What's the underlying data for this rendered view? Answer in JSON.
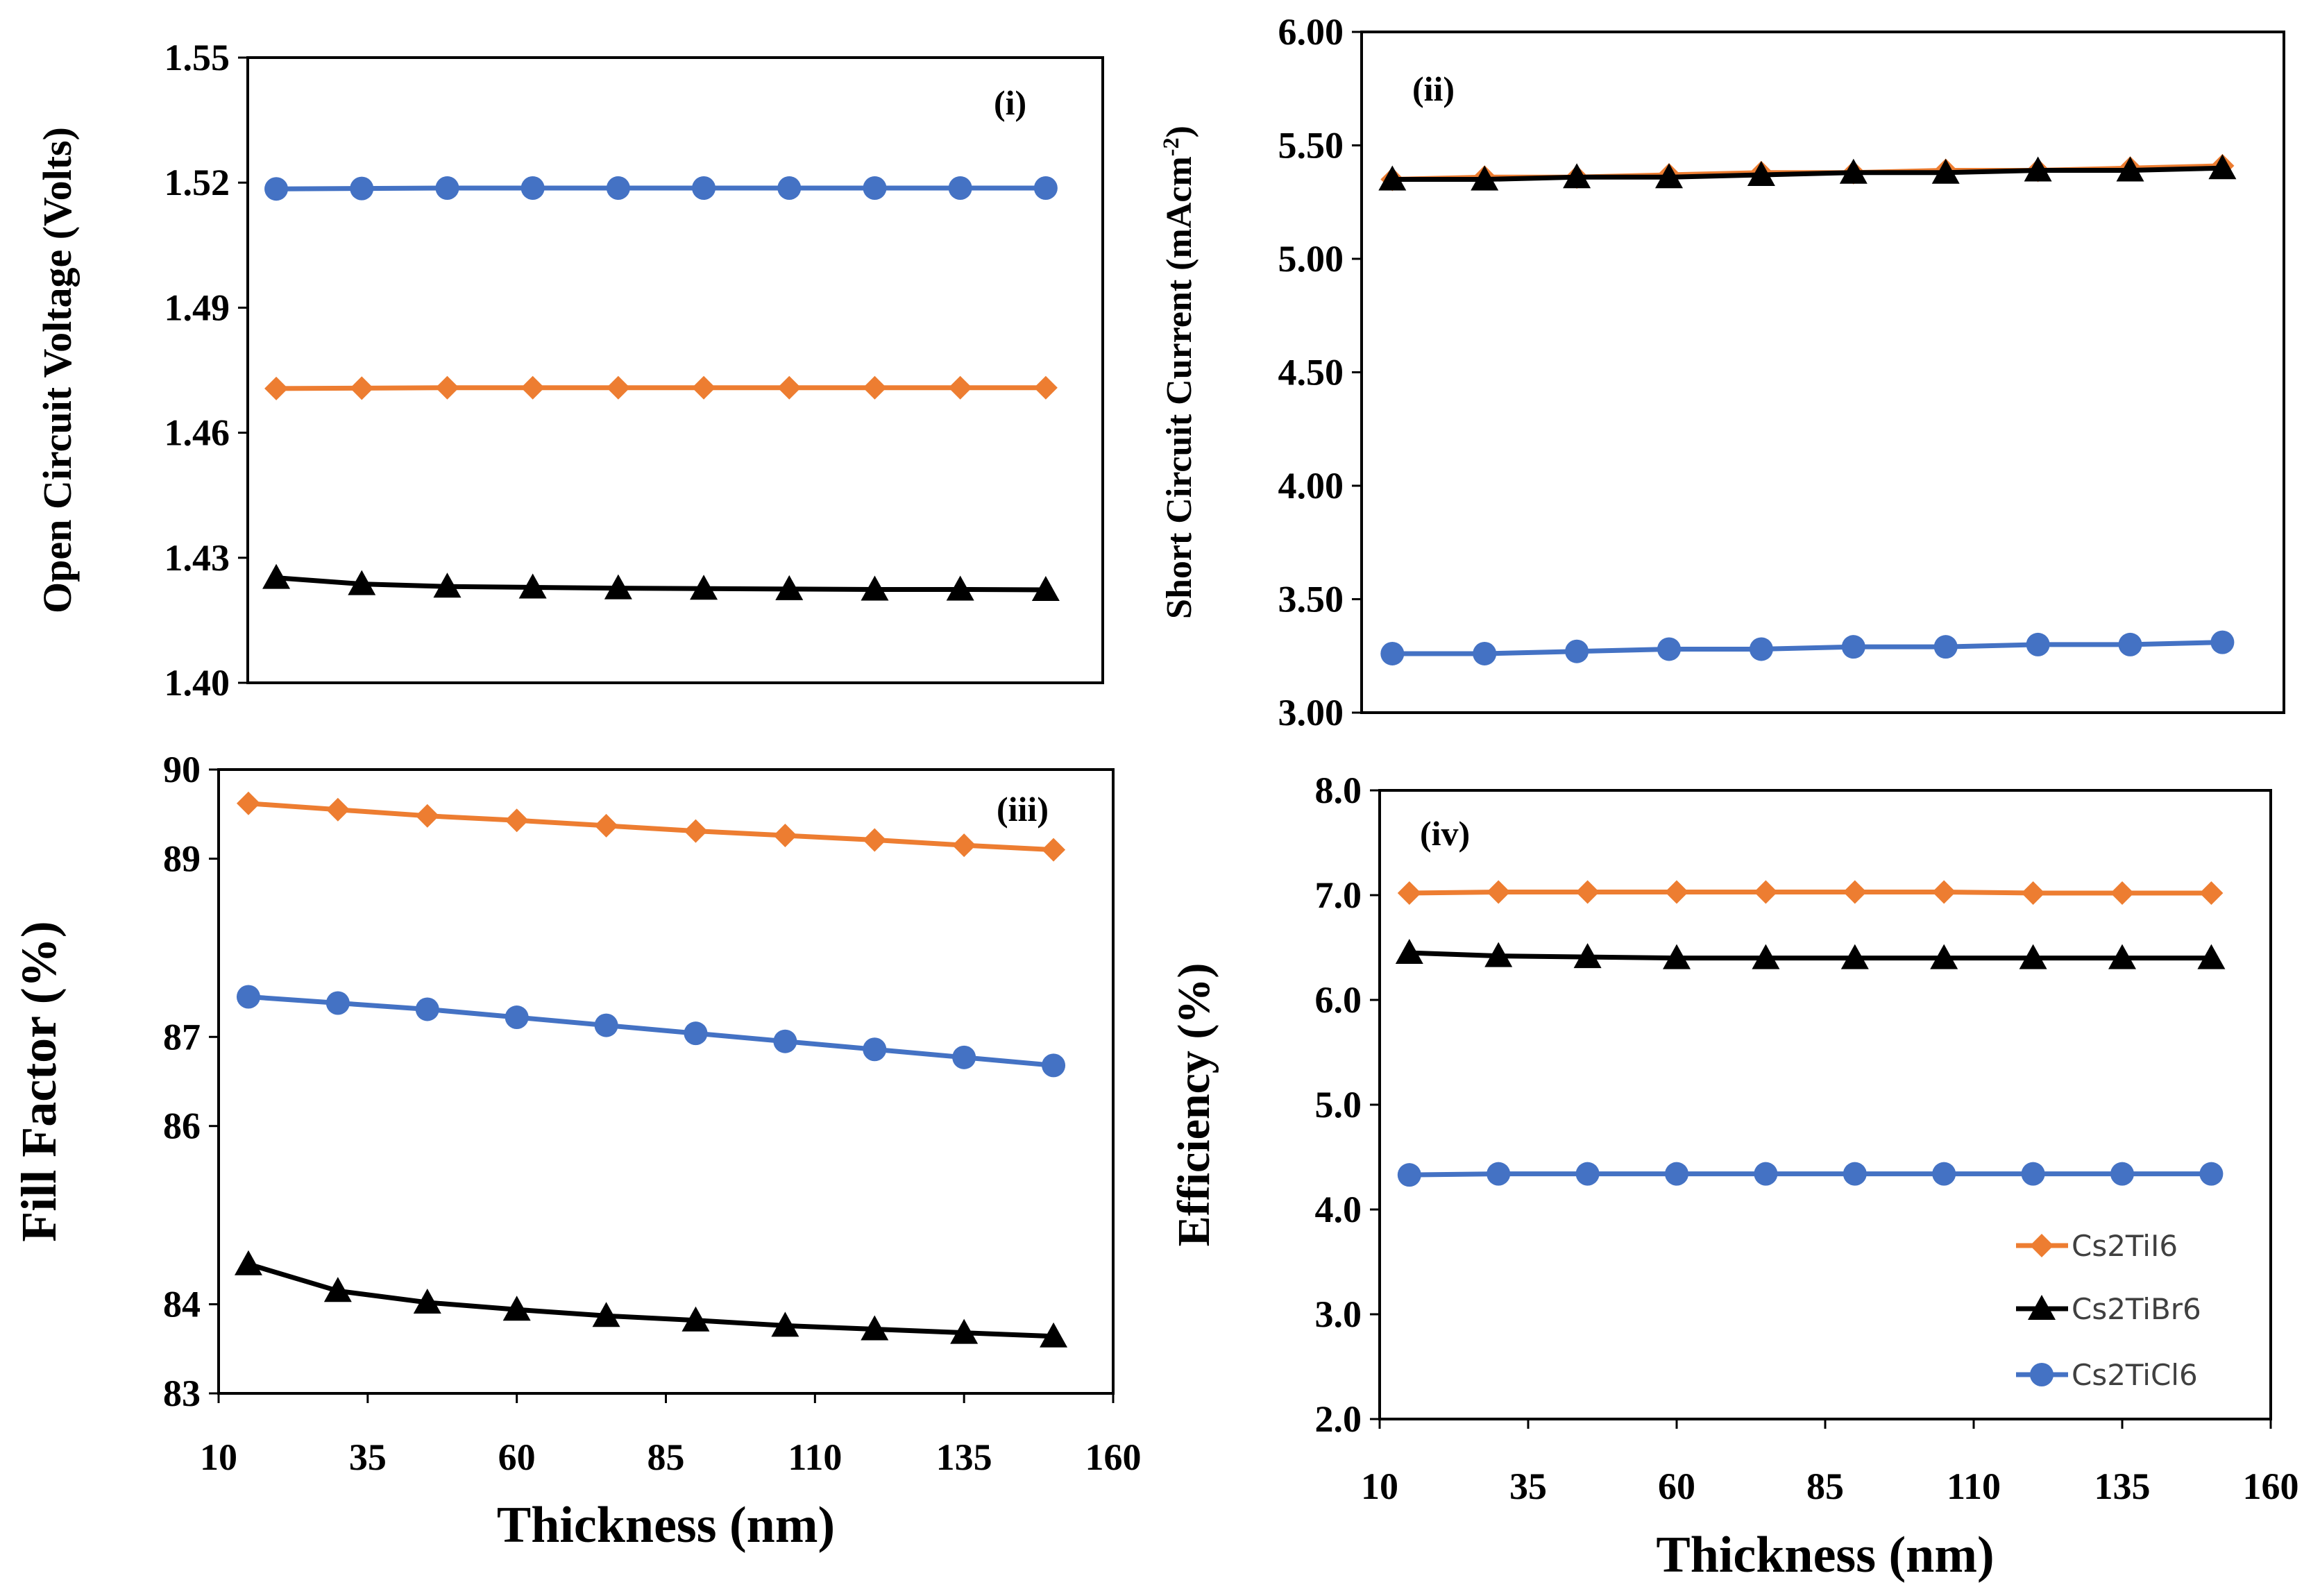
{
  "colors": {
    "Cs2TiI6": "#ED7D31",
    "Cs2TiBr6": "#000000",
    "Cs2TiCl6": "#4472C4"
  },
  "legend": [
    {
      "name": "Cs2TiI6",
      "marker": "diamond"
    },
    {
      "name": "Cs2TiBr6",
      "marker": "triangle"
    },
    {
      "name": "Cs2TiCl6",
      "marker": "circle"
    }
  ],
  "chart_data": [
    {
      "type": "line",
      "panel": "(i)",
      "xlabel": "",
      "ylabel": "Open Circuit Voltage (Volts)",
      "ylim": [
        1.4,
        1.55
      ],
      "yticks": [
        "1.40",
        "1.43",
        "1.46",
        "1.49",
        "1.52",
        "1.55"
      ],
      "xlim": [
        10,
        160
      ],
      "xticks": [],
      "x": [
        15,
        30,
        45,
        60,
        75,
        90,
        105,
        120,
        135,
        150
      ],
      "series": [
        {
          "name": "Cs2TiCl6",
          "marker": "circle",
          "values": [
            1.5185,
            1.5186,
            1.5187,
            1.5187,
            1.5187,
            1.5187,
            1.5187,
            1.5187,
            1.5187,
            1.5187
          ]
        },
        {
          "name": "Cs2TiI6",
          "marker": "diamond",
          "values": [
            1.4706,
            1.4707,
            1.4708,
            1.4708,
            1.4708,
            1.4708,
            1.4708,
            1.4708,
            1.4708,
            1.4708
          ]
        },
        {
          "name": "Cs2TiBr6",
          "marker": "triangle",
          "values": [
            1.4252,
            1.4237,
            1.4231,
            1.4229,
            1.4227,
            1.4226,
            1.4225,
            1.4224,
            1.4224,
            1.4223
          ]
        }
      ]
    },
    {
      "type": "line",
      "panel": "(ii)",
      "xlabel": "",
      "ylabel": "Short Circuit Current (mAcm",
      "ylabel_sup": "-2",
      "ylabel_end": ")",
      "ylim": [
        3.0,
        6.0
      ],
      "yticks": [
        "3.00",
        "3.50",
        "4.00",
        "4.50",
        "5.00",
        "5.50",
        "6.00"
      ],
      "xlim": [
        10,
        160
      ],
      "xticks": [],
      "x": [
        15,
        30,
        45,
        60,
        75,
        90,
        105,
        120,
        135,
        150
      ],
      "series": [
        {
          "name": "Cs2TiI6",
          "marker": "diamond",
          "values": [
            5.35,
            5.36,
            5.36,
            5.37,
            5.38,
            5.38,
            5.39,
            5.39,
            5.4,
            5.41
          ]
        },
        {
          "name": "Cs2TiBr6",
          "marker": "triangle",
          "values": [
            5.35,
            5.35,
            5.36,
            5.36,
            5.37,
            5.38,
            5.38,
            5.39,
            5.39,
            5.4
          ]
        },
        {
          "name": "Cs2TiCl6",
          "marker": "circle",
          "values": [
            3.26,
            3.26,
            3.27,
            3.28,
            3.28,
            3.29,
            3.29,
            3.3,
            3.3,
            3.31
          ]
        }
      ]
    },
    {
      "type": "line",
      "panel": "(iii)",
      "xlabel": "Thickness (nm)",
      "ylabel": "Fill Factor (%)",
      "ylim": [
        83,
        90
      ],
      "yticks": [
        "83",
        "84",
        "86",
        "87",
        "89",
        "90"
      ],
      "xlim": [
        10,
        160
      ],
      "xticks": [
        "10",
        "35",
        "60",
        "85",
        "110",
        "135",
        "160"
      ],
      "x": [
        15,
        30,
        45,
        60,
        75,
        90,
        105,
        120,
        135,
        150
      ],
      "series": [
        {
          "name": "Cs2TiI6",
          "marker": "diamond",
          "values": [
            89.62,
            89.55,
            89.48,
            89.43,
            89.37,
            89.31,
            89.26,
            89.21,
            89.15,
            89.1
          ]
        },
        {
          "name": "Cs2TiCl6",
          "marker": "circle",
          "values": [
            87.45,
            87.38,
            87.31,
            87.22,
            87.13,
            87.04,
            86.95,
            86.86,
            86.77,
            86.68
          ]
        },
        {
          "name": "Cs2TiBr6",
          "marker": "triangle",
          "values": [
            84.45,
            84.15,
            84.02,
            83.94,
            83.87,
            83.82,
            83.76,
            83.72,
            83.68,
            83.64
          ]
        }
      ]
    },
    {
      "type": "line",
      "panel": "(iv)",
      "xlabel": "Thickness (nm)",
      "ylabel": "Efficiency (%)",
      "ylim": [
        2.0,
        8.0
      ],
      "yticks": [
        "2.0",
        "3.0",
        "4.0",
        "5.0",
        "6.0",
        "7.0",
        "8.0"
      ],
      "xlim": [
        10,
        160
      ],
      "xticks": [
        "10",
        "35",
        "60",
        "85",
        "110",
        "135",
        "160"
      ],
      "x": [
        15,
        30,
        45,
        60,
        75,
        90,
        105,
        120,
        135,
        150
      ],
      "series": [
        {
          "name": "Cs2TiI6",
          "marker": "diamond",
          "values": [
            7.02,
            7.03,
            7.03,
            7.03,
            7.03,
            7.03,
            7.03,
            7.02,
            7.02,
            7.02
          ]
        },
        {
          "name": "Cs2TiBr6",
          "marker": "triangle",
          "values": [
            6.45,
            6.42,
            6.41,
            6.4,
            6.4,
            6.4,
            6.4,
            6.4,
            6.4,
            6.4
          ]
        },
        {
          "name": "Cs2TiCl6",
          "marker": "circle",
          "values": [
            4.33,
            4.34,
            4.34,
            4.34,
            4.34,
            4.34,
            4.34,
            4.34,
            4.34,
            4.34
          ]
        }
      ]
    }
  ]
}
